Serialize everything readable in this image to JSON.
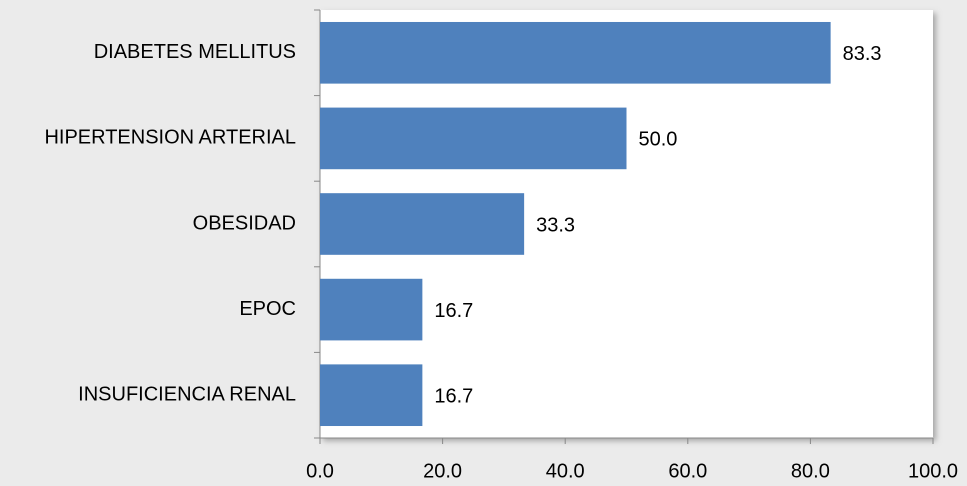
{
  "chart_data": {
    "type": "bar",
    "orientation": "horizontal",
    "categories": [
      "DIABETES MELLITUS",
      "HIPERTENSION ARTERIAL",
      "OBESIDAD",
      "EPOC",
      "INSUFICIENCIA RENAL"
    ],
    "values": [
      83.3,
      50,
      33.3,
      16.7,
      16.7
    ],
    "value_labels": [
      "83.3",
      "50.0",
      "33.3",
      "16.7",
      "16.7"
    ],
    "color": "#4f81bd",
    "xlim": [
      0,
      100
    ],
    "xticks": [
      {
        "value": 0,
        "label": "0.0"
      },
      {
        "value": 20,
        "label": "20.0"
      },
      {
        "value": 40,
        "label": "40.0"
      },
      {
        "value": 60,
        "label": "60.0"
      },
      {
        "value": 80,
        "label": "80.0"
      },
      {
        "value": 100,
        "label": "100.0"
      }
    ],
    "grid": false
  }
}
